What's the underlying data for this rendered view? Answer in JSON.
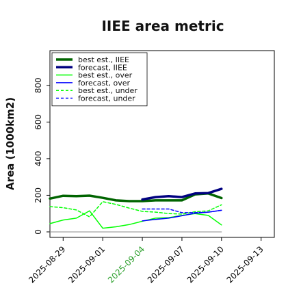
{
  "chart_data": {
    "type": "line",
    "title": "IIEE area metric",
    "ylabel": "Area (1000km2)",
    "xlabel": "",
    "ylim": [
      -30,
      990
    ],
    "y_ticks": [
      0,
      200,
      400,
      600,
      800
    ],
    "x_tick_labels": [
      {
        "label": "2025-08-29",
        "color": "#000000"
      },
      {
        "label": "2025-09-01",
        "color": "#000000"
      },
      {
        "label": "2025-09-04",
        "color": "#2ca02c"
      },
      {
        "label": "2025-09-07",
        "color": "#000000"
      },
      {
        "label": "2025-09-10",
        "color": "#000000"
      },
      {
        "label": "2025-09-13",
        "color": "#000000"
      }
    ],
    "x_range": [
      "2025-08-28",
      "2025-09-14"
    ],
    "legend_position": "top-left",
    "series": [
      {
        "name": "best est., IIEE",
        "color": "#006400",
        "width": 3.5,
        "dash": "",
        "x": [
          "2025-08-28",
          "2025-08-29",
          "2025-08-30",
          "2025-08-31",
          "2025-09-01",
          "2025-09-02",
          "2025-09-03",
          "2025-09-04",
          "2025-09-05",
          "2025-09-06",
          "2025-09-07",
          "2025-09-08",
          "2025-09-09",
          "2025-09-10"
        ],
        "y": [
          182,
          197,
          195,
          198,
          186,
          172,
          168,
          168,
          172,
          172,
          172,
          205,
          210,
          185
        ]
      },
      {
        "name": "forecast, IIEE",
        "color": "#000080",
        "width": 3.5,
        "dash": "",
        "x": [
          "2025-09-04",
          "2025-09-05",
          "2025-09-06",
          "2025-09-07",
          "2025-09-08",
          "2025-09-09",
          "2025-09-10"
        ],
        "y": [
          177,
          190,
          195,
          190,
          210,
          212,
          235
        ]
      },
      {
        "name": "best est., over",
        "color": "#00ff00",
        "width": 1.5,
        "dash": "",
        "x": [
          "2025-08-28",
          "2025-08-29",
          "2025-08-30",
          "2025-08-31",
          "2025-09-01",
          "2025-09-02",
          "2025-09-03",
          "2025-09-04",
          "2025-09-05",
          "2025-09-06",
          "2025-09-07",
          "2025-09-08",
          "2025-09-09",
          "2025-09-10"
        ],
        "y": [
          45,
          65,
          75,
          115,
          20,
          28,
          40,
          58,
          75,
          78,
          90,
          100,
          90,
          38
        ]
      },
      {
        "name": "forecast, over",
        "color": "#0000ff",
        "width": 1.5,
        "dash": "",
        "x": [
          "2025-09-04",
          "2025-09-05",
          "2025-09-06",
          "2025-09-07",
          "2025-09-08",
          "2025-09-09",
          "2025-09-10"
        ],
        "y": [
          60,
          68,
          75,
          88,
          102,
          108,
          118
        ]
      },
      {
        "name": "best est., under",
        "color": "#00ff00",
        "width": 1.5,
        "dash": "4,3",
        "x": [
          "2025-08-28",
          "2025-08-29",
          "2025-08-30",
          "2025-08-31",
          "2025-09-01",
          "2025-09-02",
          "2025-09-03",
          "2025-09-04",
          "2025-09-05",
          "2025-09-06",
          "2025-09-07",
          "2025-09-08",
          "2025-09-09",
          "2025-09-10"
        ],
        "y": [
          138,
          132,
          120,
          82,
          165,
          150,
          130,
          112,
          108,
          100,
          97,
          110,
          115,
          148
        ]
      },
      {
        "name": "forecast, under",
        "color": "#0000ff",
        "width": 1.5,
        "dash": "4,3",
        "x": [
          "2025-09-04",
          "2025-09-05",
          "2025-09-06",
          "2025-09-07",
          "2025-09-08",
          "2025-09-09",
          "2025-09-10"
        ],
        "y": [
          125,
          125,
          125,
          105,
          105,
          108,
          118
        ]
      },
      {
        "name": "",
        "color": "#888888",
        "width": 1,
        "dash": "",
        "x": [
          "2025-08-28",
          "2025-09-10"
        ],
        "y": [
          0,
          0
        ]
      }
    ]
  }
}
